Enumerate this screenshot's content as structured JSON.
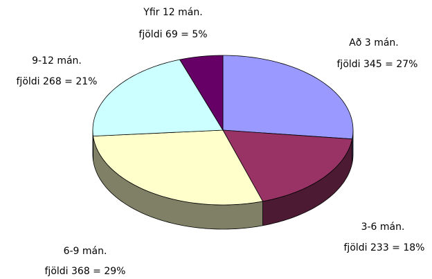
{
  "chart_data": {
    "type": "pie3d",
    "categories": [
      "Að 3 mán.",
      "3-6 mán.",
      "6-9 mán.",
      "9-12 mán.",
      "Yfir 12 mán."
    ],
    "values": [
      345,
      233,
      368,
      268,
      69
    ],
    "value_labels": [
      "fjöldi 345 = 27%",
      "fjöldi 233 = 18%",
      "fjöldi 368 = 29%",
      "fjöldi 268 = 21%",
      "fjöldi 69 = 5%"
    ],
    "colors": [
      "#9999ff",
      "#993366",
      "#ffffcc",
      "#ccffff",
      "#660066"
    ]
  }
}
